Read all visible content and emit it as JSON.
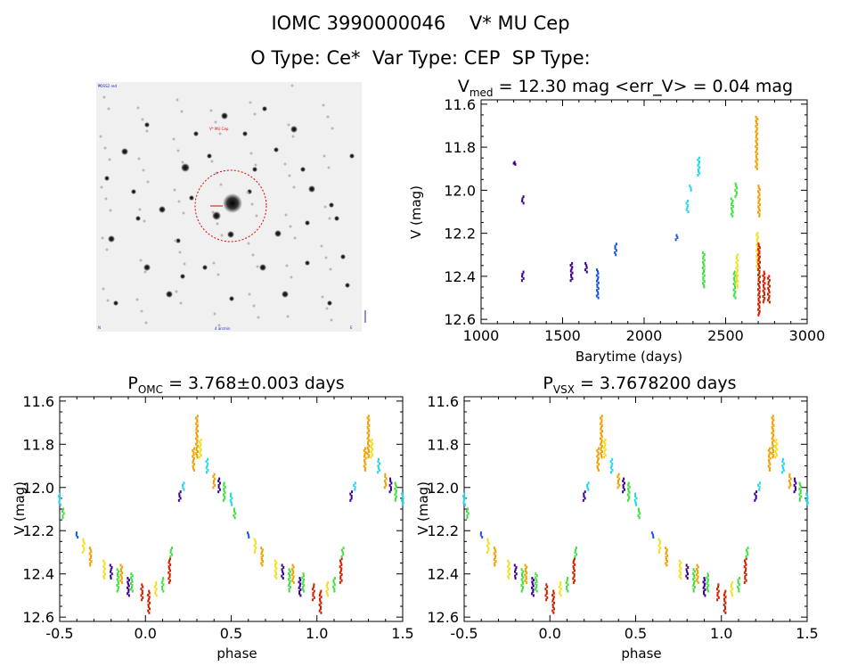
{
  "header": {
    "line1": "IOMC 3990000046    V* MU Cep",
    "line2": "O Type: Ce*  Var Type: CEP  SP Type:"
  },
  "image_panel": {
    "description_none": "",
    "labels": {
      "top_left": "POSS2 red",
      "target": "V* MU Cep",
      "bottom_left": "N",
      "bottom_center": "4 arcmin",
      "bottom_right": "E"
    }
  },
  "colors": {
    "purple": "#3a0090",
    "blue": "#1a55e0",
    "cyan": "#20d8e8",
    "green": "#40e040",
    "yellow": "#f0e020",
    "orange": "#f0a000",
    "red": "#d02000",
    "redcircle": "#e00000"
  },
  "chart_data": [
    {
      "type": "scatter",
      "title_main": "V",
      "title_sub": "med",
      "title_rest": " = 12.30 mag <err_V> = 0.04 mag",
      "xlabel": "Barytime (days)",
      "ylabel": "V (mag)",
      "xlim": [
        1000,
        3000
      ],
      "ylim": [
        12.62,
        11.58
      ],
      "xticks": [
        "1000",
        "1500",
        "2000",
        "2500",
        "3000"
      ],
      "yticks": [
        "11.6",
        "11.8",
        "12.0",
        "12.2",
        "12.4",
        "12.6"
      ],
      "clusters": [
        {
          "x": 1205,
          "y": [
            11.87,
            11.88
          ],
          "color": "purple"
        },
        {
          "x": 1255,
          "y": [
            12.03,
            12.06
          ],
          "color": "purple"
        },
        {
          "x": 1255,
          "y": [
            12.38,
            12.42
          ],
          "color": "purple"
        },
        {
          "x": 1555,
          "y": [
            12.34,
            12.42
          ],
          "color": "purple"
        },
        {
          "x": 1645,
          "y": [
            12.34,
            12.38
          ],
          "color": "purple"
        },
        {
          "x": 1715,
          "y": [
            12.37,
            12.5
          ],
          "color": "blue"
        },
        {
          "x": 1825,
          "y": [
            12.25,
            12.3
          ],
          "color": "blue"
        },
        {
          "x": 2200,
          "y": [
            12.21,
            12.23
          ],
          "color": "blue"
        },
        {
          "x": 2265,
          "y": [
            12.05,
            12.1
          ],
          "color": "cyan"
        },
        {
          "x": 2285,
          "y": [
            11.98,
            12.0
          ],
          "color": "cyan"
        },
        {
          "x": 2335,
          "y": [
            11.85,
            11.93
          ],
          "color": "cyan"
        },
        {
          "x": 2365,
          "y": [
            12.29,
            12.45
          ],
          "color": "green"
        },
        {
          "x": 2540,
          "y": [
            12.04,
            12.12
          ],
          "color": "green"
        },
        {
          "x": 2555,
          "y": [
            12.38,
            12.5
          ],
          "color": "green"
        },
        {
          "x": 2565,
          "y": [
            11.97,
            12.03
          ],
          "color": "green"
        },
        {
          "x": 2570,
          "y": [
            12.3,
            12.45
          ],
          "color": "yellow"
        },
        {
          "x": 2690,
          "y": [
            11.66,
            11.9
          ],
          "color": "orange"
        },
        {
          "x": 2695,
          "y": [
            12.2,
            12.37
          ],
          "color": "yellow"
        },
        {
          "x": 2705,
          "y": [
            11.98,
            12.12
          ],
          "color": "orange"
        },
        {
          "x": 2705,
          "y": [
            12.25,
            12.58
          ],
          "color": "red"
        },
        {
          "x": 2735,
          "y": [
            12.38,
            12.52
          ],
          "color": "red"
        },
        {
          "x": 2765,
          "y": [
            12.4,
            12.52
          ],
          "color": "red"
        }
      ]
    },
    {
      "type": "scatter",
      "title_main": "P",
      "title_sub": "OMC",
      "title_rest": " = 3.768±0.003 days",
      "xlabel": "phase",
      "ylabel": "V (mag)",
      "xlim": [
        -0.5,
        1.5
      ],
      "ylim": [
        12.62,
        11.58
      ],
      "xticks": [
        "-0.5",
        "0.0",
        "0.5",
        "1.0",
        "1.5"
      ],
      "yticks": [
        "11.6",
        "11.8",
        "12.0",
        "12.2",
        "12.4",
        "12.6"
      ]
    },
    {
      "type": "scatter",
      "title_main": "P",
      "title_sub": "VSX",
      "title_rest": " = 3.7678200 days",
      "xlabel": "phase",
      "ylabel": "V (mag)",
      "xlim": [
        -0.5,
        1.5
      ],
      "ylim": [
        12.62,
        11.58
      ],
      "xticks": [
        "-0.5",
        "0.0",
        "0.5",
        "1.0",
        "1.5"
      ],
      "yticks": [
        "11.6",
        "11.8",
        "12.0",
        "12.2",
        "12.4",
        "12.6"
      ]
    }
  ],
  "phase_clusters": [
    {
      "p": -0.4,
      "y": [
        12.21,
        12.23
      ],
      "color": "blue"
    },
    {
      "p": -0.36,
      "y": [
        12.24,
        12.3
      ],
      "color": "yellow"
    },
    {
      "p": -0.32,
      "y": [
        12.28,
        12.36
      ],
      "color": "orange"
    },
    {
      "p": -0.24,
      "y": [
        12.34,
        12.42
      ],
      "color": "yellow"
    },
    {
      "p": -0.2,
      "y": [
        12.36,
        12.42
      ],
      "color": "purple"
    },
    {
      "p": -0.16,
      "y": [
        12.38,
        12.48
      ],
      "color": "green"
    },
    {
      "p": -0.14,
      "y": [
        12.36,
        12.44
      ],
      "color": "orange"
    },
    {
      "p": -0.1,
      "y": [
        12.42,
        12.5
      ],
      "color": "purple"
    },
    {
      "p": -0.08,
      "y": [
        12.4,
        12.48
      ],
      "color": "green"
    },
    {
      "p": -0.02,
      "y": [
        12.45,
        12.52
      ],
      "color": "red"
    },
    {
      "p": 0.02,
      "y": [
        12.48,
        12.58
      ],
      "color": "red"
    },
    {
      "p": 0.06,
      "y": [
        12.44,
        12.5
      ],
      "color": "yellow"
    },
    {
      "p": 0.1,
      "y": [
        12.42,
        12.48
      ],
      "color": "green"
    },
    {
      "p": 0.14,
      "y": [
        12.33,
        12.44
      ],
      "color": "red"
    },
    {
      "p": 0.15,
      "y": [
        12.28,
        12.32
      ],
      "color": "green"
    },
    {
      "p": 0.2,
      "y": [
        12.02,
        12.06
      ],
      "color": "purple"
    },
    {
      "p": 0.22,
      "y": [
        11.98,
        12.01
      ],
      "color": "cyan"
    },
    {
      "p": 0.28,
      "y": [
        11.82,
        11.92
      ],
      "color": "orange"
    },
    {
      "p": 0.3,
      "y": [
        11.67,
        11.86
      ],
      "color": "orange"
    },
    {
      "p": 0.32,
      "y": [
        11.78,
        11.86
      ],
      "color": "yellow"
    },
    {
      "p": 0.36,
      "y": [
        11.87,
        11.93
      ],
      "color": "cyan"
    },
    {
      "p": 0.4,
      "y": [
        11.94,
        12.0
      ],
      "color": "orange"
    },
    {
      "p": 0.43,
      "y": [
        11.96,
        12.02
      ],
      "color": "purple"
    },
    {
      "p": 0.46,
      "y": [
        11.98,
        12.06
      ],
      "color": "green"
    },
    {
      "p": 0.5,
      "y": [
        12.03,
        12.08
      ],
      "color": "cyan"
    },
    {
      "p": 0.52,
      "y": [
        12.1,
        12.14
      ],
      "color": "green"
    }
  ]
}
